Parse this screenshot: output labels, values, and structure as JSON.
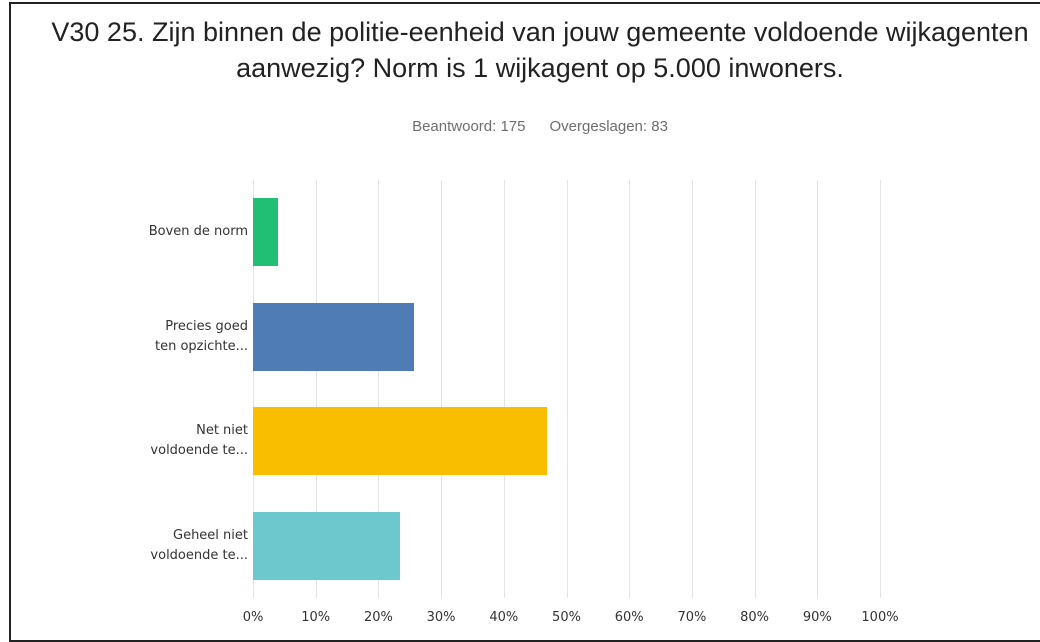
{
  "chart_data": {
    "type": "bar",
    "orientation": "horizontal",
    "title": "V30 25. Zijn binnen de politie-eenheid van jouw gemeente voldoende wijkagenten aanwezig? Norm is 1 wijkagent op 5.000 inwoners.",
    "answered": "Beantwoord: 175",
    "skipped": "Overgeslagen: 83",
    "categories": [
      "Boven de norm",
      "Precies goed\nten opzichte...",
      "Net niet\nvoldoende te...",
      "Geheel niet\nvoldoende te..."
    ],
    "values": [
      4.0,
      25.7,
      46.9,
      23.4
    ],
    "colors": [
      "#21bf73",
      "#507cb6",
      "#f9be00",
      "#6cc8cd"
    ],
    "xlim": [
      0,
      100
    ],
    "xticks": [
      {
        "value": 0,
        "label": "0%"
      },
      {
        "value": 10,
        "label": "10%"
      },
      {
        "value": 20,
        "label": "20%"
      },
      {
        "value": 30,
        "label": "30%"
      },
      {
        "value": 40,
        "label": "40%"
      },
      {
        "value": 50,
        "label": "50%"
      },
      {
        "value": 60,
        "label": "60%"
      },
      {
        "value": 70,
        "label": "70%"
      },
      {
        "value": 80,
        "label": "80%"
      },
      {
        "value": 90,
        "label": "90%"
      },
      {
        "value": 100,
        "label": "100%"
      }
    ],
    "grid": true
  }
}
